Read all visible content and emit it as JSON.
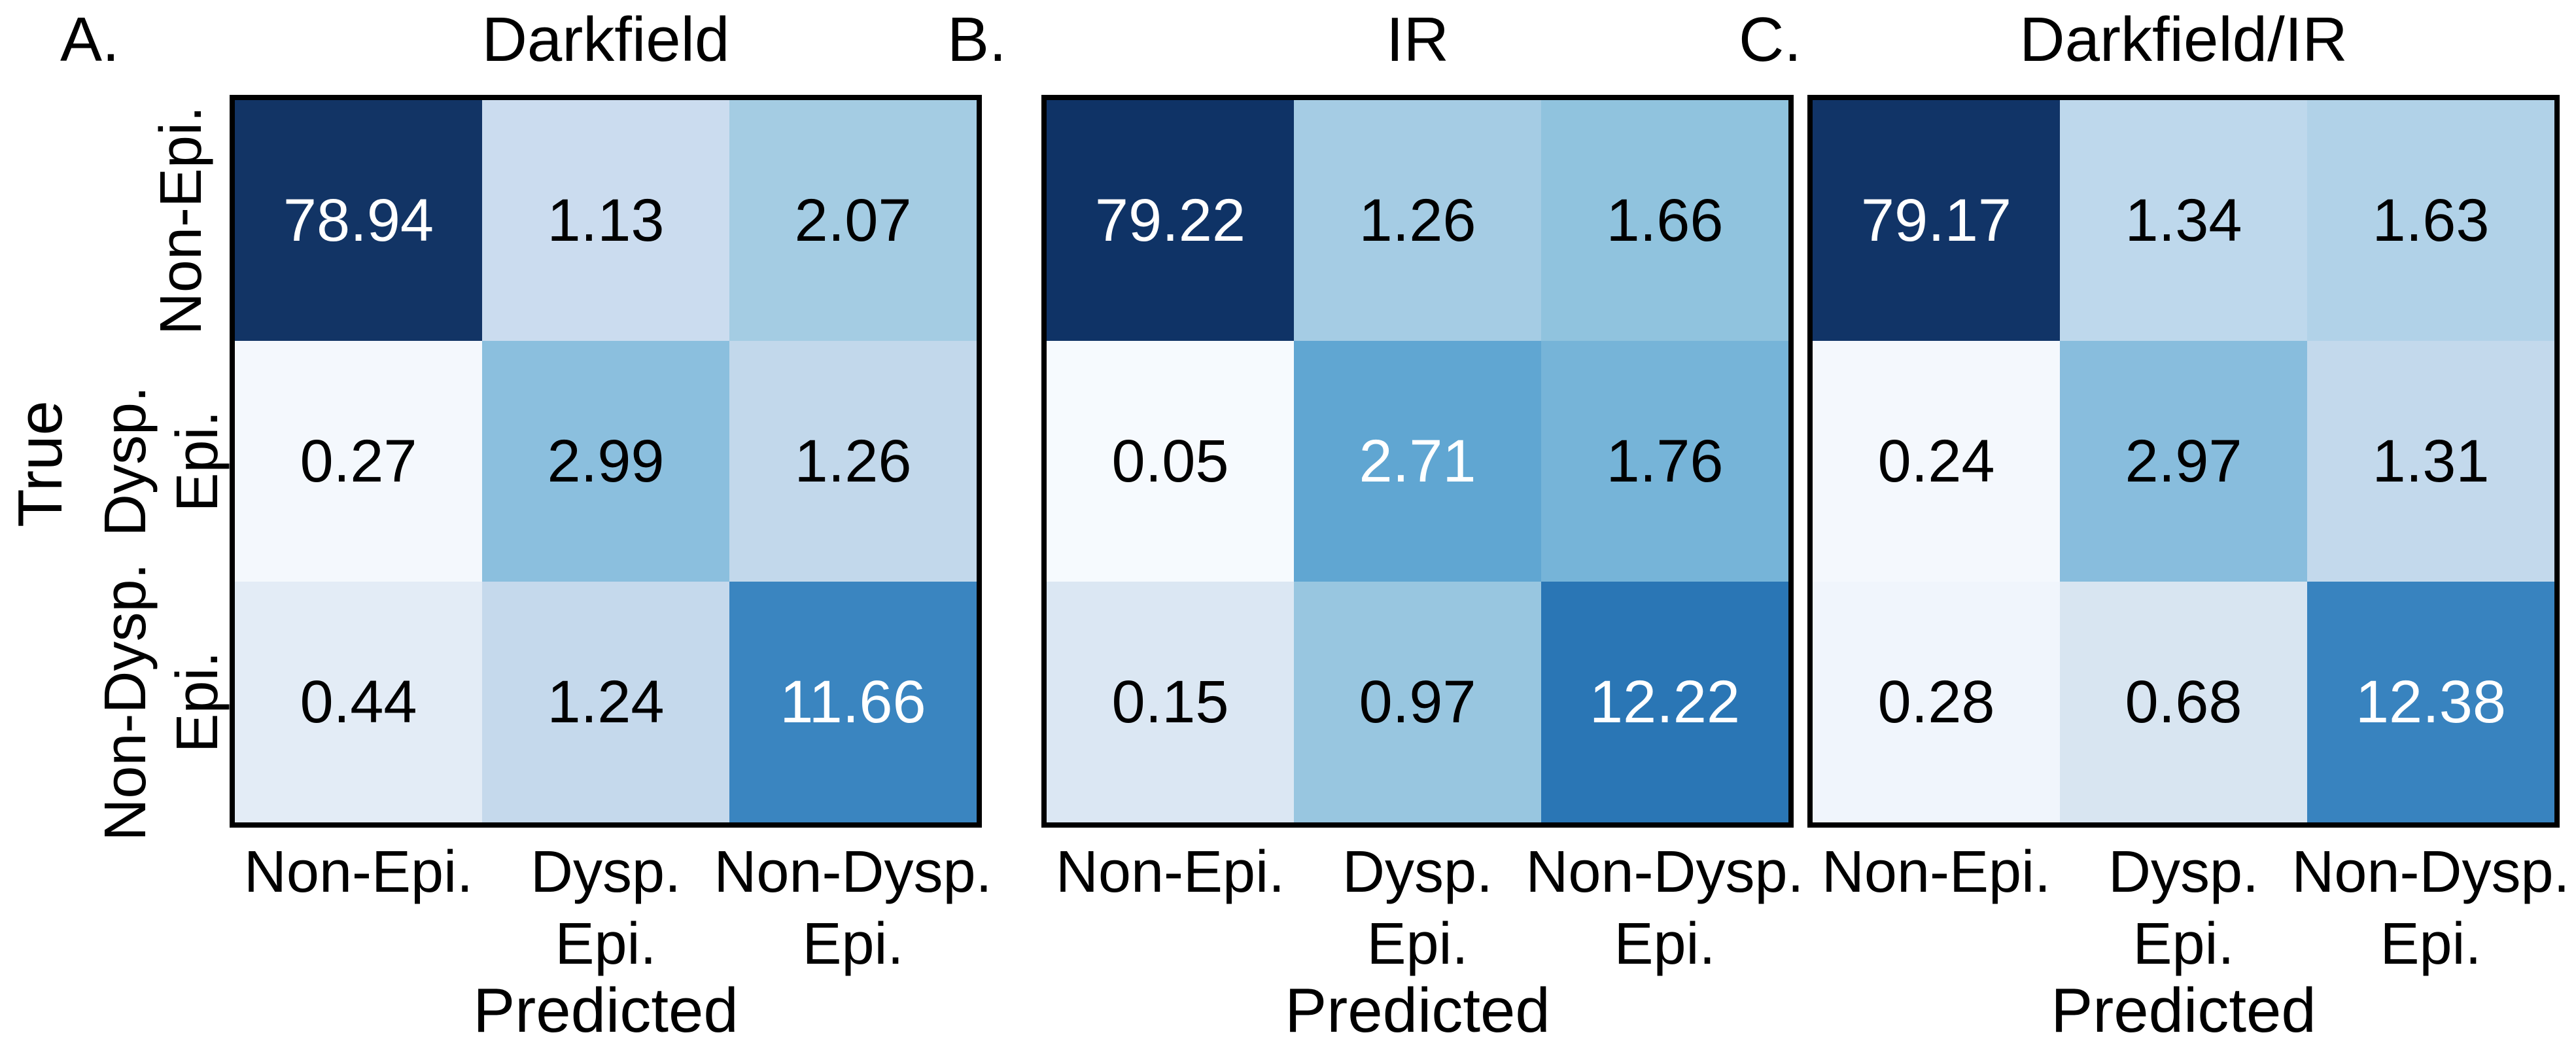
{
  "figure": {
    "background_color": "#ffffff",
    "text_color": "#000000",
    "border_color": "#000000"
  },
  "chart_data": [
    {
      "type": "heatmap",
      "key": "a",
      "letter": "A.",
      "title": "Darkfield",
      "xlabel": "Predicted",
      "ylabel": "True",
      "x_tick_labels": [
        [
          "Non-Epi."
        ],
        [
          "Dysp.",
          "Epi."
        ],
        [
          "Non-Dysp.",
          "Epi."
        ]
      ],
      "y_tick_labels": [
        [
          "Non-Epi."
        ],
        [
          "Dysp.",
          "Epi."
        ],
        [
          "Non-Dysp.",
          "Epi."
        ]
      ],
      "values": [
        [
          78.94,
          1.13,
          2.07
        ],
        [
          0.27,
          2.99,
          1.26
        ],
        [
          0.44,
          1.24,
          11.66
        ]
      ],
      "cell_colors": [
        [
          "#123465",
          "#cbdcef",
          "#a4cce3"
        ],
        [
          "#f4f8fd",
          "#8bbfde",
          "#c2d8eb"
        ],
        [
          "#e3ecf6",
          "#c5d9ec",
          "#3a85c0"
        ]
      ],
      "value_text_colors": [
        [
          "#ffffff",
          "#000000",
          "#000000"
        ],
        [
          "#000000",
          "#000000",
          "#000000"
        ],
        [
          "#000000",
          "#000000",
          "#ffffff"
        ]
      ]
    },
    {
      "type": "heatmap",
      "key": "b",
      "letter": "B.",
      "title": "IR",
      "xlabel": "Predicted",
      "x_tick_labels": [
        [
          "Non-Epi."
        ],
        [
          "Dysp.",
          "Epi."
        ],
        [
          "Non-Dysp.",
          "Epi."
        ]
      ],
      "values": [
        [
          79.22,
          1.26,
          1.66
        ],
        [
          0.05,
          2.71,
          1.76
        ],
        [
          0.15,
          0.97,
          12.22
        ]
      ],
      "cell_colors": [
        [
          "#0f3366",
          "#a5cce4",
          "#90c3de"
        ],
        [
          "#f6fafe",
          "#60a6d2",
          "#76b4d8"
        ],
        [
          "#dbe7f3",
          "#98c6e0",
          "#2a76b5"
        ]
      ],
      "value_text_colors": [
        [
          "#ffffff",
          "#000000",
          "#000000"
        ],
        [
          "#000000",
          "#ffffff",
          "#000000"
        ],
        [
          "#000000",
          "#000000",
          "#ffffff"
        ]
      ]
    },
    {
      "type": "heatmap",
      "key": "c",
      "letter": "C.",
      "title": "Darkfield/IR",
      "xlabel": "Predicted",
      "x_tick_labels": [
        [
          "Non-Epi."
        ],
        [
          "Dysp.",
          "Epi."
        ],
        [
          "Non-Dysp.",
          "Epi."
        ]
      ],
      "values": [
        [
          79.17,
          1.34,
          1.63
        ],
        [
          0.24,
          2.97,
          1.31
        ],
        [
          0.28,
          0.68,
          12.38
        ]
      ],
      "cell_colors": [
        [
          "#113467",
          "#bed8ec",
          "#b1d2e8"
        ],
        [
          "#f4f8fd",
          "#88bddd",
          "#c3d9ec"
        ],
        [
          "#f0f5fc",
          "#d8e5f1",
          "#3883bf"
        ]
      ],
      "value_text_colors": [
        [
          "#ffffff",
          "#000000",
          "#000000"
        ],
        [
          "#000000",
          "#000000",
          "#000000"
        ],
        [
          "#000000",
          "#000000",
          "#ffffff"
        ]
      ]
    }
  ]
}
